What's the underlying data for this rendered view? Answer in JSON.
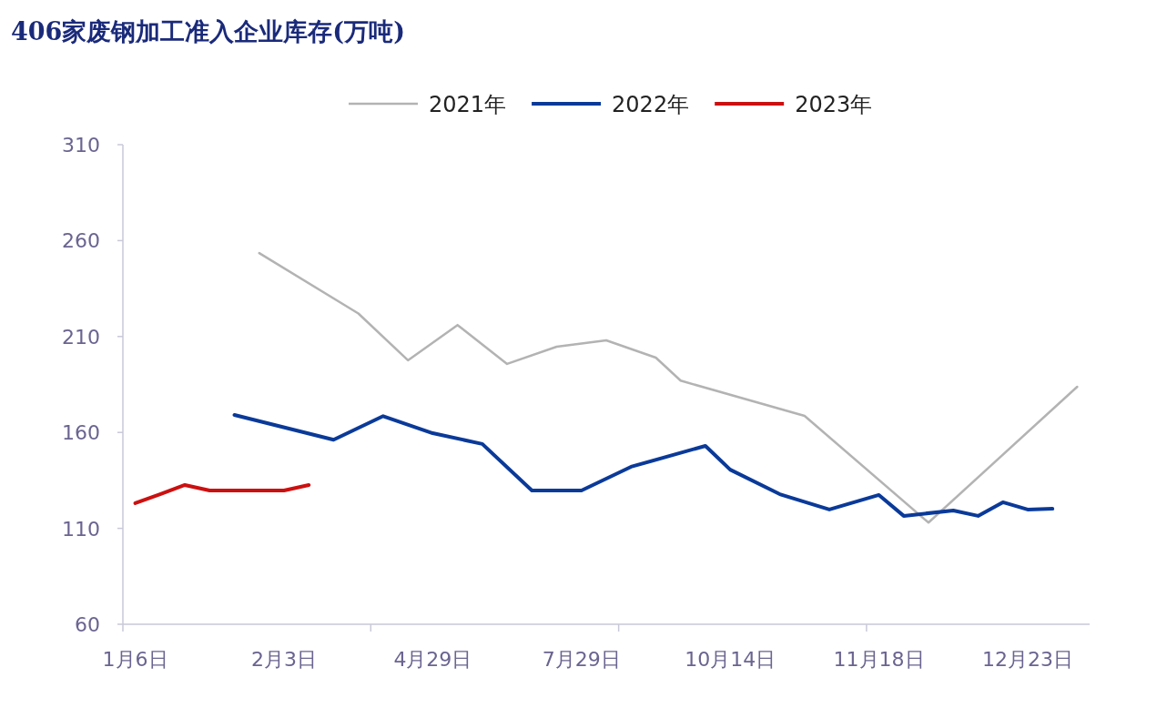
{
  "chart_data": {
    "type": "line",
    "title": "406家废钢加工准入企业库存(万吨)",
    "categories": [
      "1月6日",
      null,
      null,
      null,
      null,
      null,
      "2月3日",
      null,
      null,
      null,
      null,
      null,
      "4月29日",
      null,
      null,
      null,
      null,
      null,
      "7月29日",
      null,
      null,
      null,
      null,
      null,
      "10月14日",
      null,
      null,
      null,
      null,
      null,
      "11月18日",
      null,
      null,
      null,
      null,
      null,
      "12月23日",
      null,
      null
    ],
    "series": [
      {
        "name": "2021年",
        "color": "#b3b3b3",
        "values": [
          null,
          null,
          null,
          null,
          null,
          253.5,
          null,
          null,
          null,
          222,
          null,
          197.6,
          null,
          216,
          null,
          195.7,
          null,
          204.7,
          null,
          208,
          null,
          199,
          187,
          null,
          null,
          null,
          null,
          168.6,
          null,
          null,
          null,
          null,
          113,
          null,
          null,
          null,
          null,
          null,
          183.8
        ]
      },
      {
        "name": "2022年",
        "color": "#0a3a99",
        "values": [
          null,
          null,
          null,
          null,
          169.1,
          null,
          null,
          null,
          156.2,
          null,
          168.5,
          null,
          159.6,
          null,
          154,
          null,
          129.7,
          null,
          129.7,
          null,
          142.1,
          null,
          null,
          153,
          140.6,
          null,
          127.8,
          null,
          119.8,
          null,
          127.4,
          116.5,
          null,
          119.3,
          116.5,
          123.6,
          119.8,
          120.2,
          null
        ]
      },
      {
        "name": "2023年",
        "color": "#cc1010",
        "values": [
          123.1,
          127.8,
          132.6,
          129.7,
          129.7,
          129.7,
          129.7,
          132.6,
          null,
          null,
          null,
          null,
          null,
          null,
          null,
          null,
          null,
          null,
          null,
          null,
          null,
          null,
          null,
          null,
          null,
          null,
          null,
          null,
          null,
          null,
          null,
          null,
          null,
          null,
          null,
          null,
          null,
          null,
          null
        ]
      }
    ],
    "ylim": [
      60,
      310
    ],
    "yticks": [
      60,
      110,
      160,
      210,
      260,
      310
    ],
    "legend": "top",
    "line_style": "solid",
    "marker": "none",
    "grid": false
  }
}
